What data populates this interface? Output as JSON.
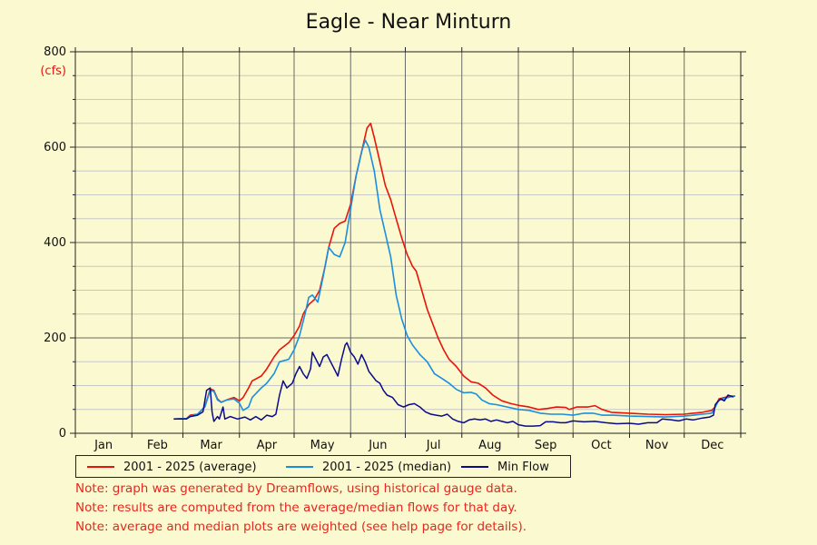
{
  "title": "Eagle - Near Minturn",
  "chart_data": {
    "type": "line",
    "title": "Eagle - Near Minturn",
    "ylabel": "(cfs)",
    "xlabel": "",
    "ylim": [
      0,
      800
    ],
    "yticks": [
      0,
      200,
      400,
      600,
      800
    ],
    "x_unit": "day_of_year",
    "xlim": [
      1,
      366
    ],
    "months": [
      {
        "label": "Jan",
        "start": 1
      },
      {
        "label": "Feb",
        "start": 32
      },
      {
        "label": "Mar",
        "start": 60
      },
      {
        "label": "Apr",
        "start": 91
      },
      {
        "label": "May",
        "start": 121
      },
      {
        "label": "Jun",
        "start": 152
      },
      {
        "label": "Jul",
        "start": 182
      },
      {
        "label": "Aug",
        "start": 213
      },
      {
        "label": "Sep",
        "start": 244
      },
      {
        "label": "Oct",
        "start": 274
      },
      {
        "label": "Nov",
        "start": 305
      },
      {
        "label": "Dec",
        "start": 335
      }
    ],
    "grid": true,
    "legend_position": "bottom",
    "series": [
      {
        "name": "2001 - 2025 (average)",
        "color": "#e8140c",
        "points": [
          [
            55,
            30
          ],
          [
            62,
            31
          ],
          [
            64,
            38
          ],
          [
            68,
            40
          ],
          [
            72,
            55
          ],
          [
            75,
            93
          ],
          [
            77,
            90
          ],
          [
            79,
            72
          ],
          [
            81,
            65
          ],
          [
            84,
            70
          ],
          [
            88,
            75
          ],
          [
            91,
            68
          ],
          [
            93,
            75
          ],
          [
            96,
            95
          ],
          [
            98,
            110
          ],
          [
            103,
            120
          ],
          [
            106,
            135
          ],
          [
            110,
            160
          ],
          [
            113,
            175
          ],
          [
            118,
            190
          ],
          [
            121,
            205
          ],
          [
            124,
            225
          ],
          [
            126,
            250
          ],
          [
            129,
            270
          ],
          [
            132,
            280
          ],
          [
            135,
            300
          ],
          [
            138,
            350
          ],
          [
            140,
            390
          ],
          [
            143,
            430
          ],
          [
            146,
            440
          ],
          [
            149,
            445
          ],
          [
            152,
            480
          ],
          [
            155,
            540
          ],
          [
            158,
            590
          ],
          [
            161,
            640
          ],
          [
            163,
            650
          ],
          [
            165,
            620
          ],
          [
            168,
            570
          ],
          [
            171,
            520
          ],
          [
            174,
            490
          ],
          [
            177,
            450
          ],
          [
            180,
            410
          ],
          [
            183,
            375
          ],
          [
            186,
            350
          ],
          [
            188,
            340
          ],
          [
            191,
            300
          ],
          [
            194,
            260
          ],
          [
            197,
            230
          ],
          [
            200,
            200
          ],
          [
            203,
            175
          ],
          [
            206,
            155
          ],
          [
            210,
            140
          ],
          [
            214,
            120
          ],
          [
            218,
            108
          ],
          [
            222,
            105
          ],
          [
            226,
            95
          ],
          [
            230,
            80
          ],
          [
            235,
            68
          ],
          [
            240,
            62
          ],
          [
            245,
            58
          ],
          [
            250,
            55
          ],
          [
            255,
            50
          ],
          [
            260,
            52
          ],
          [
            265,
            55
          ],
          [
            270,
            54
          ],
          [
            272,
            50
          ],
          [
            276,
            55
          ],
          [
            282,
            55
          ],
          [
            286,
            58
          ],
          [
            290,
            50
          ],
          [
            295,
            44
          ],
          [
            305,
            42
          ],
          [
            315,
            40
          ],
          [
            325,
            39
          ],
          [
            335,
            40
          ],
          [
            340,
            42
          ],
          [
            345,
            44
          ],
          [
            350,
            48
          ],
          [
            352,
            55
          ],
          [
            354,
            72
          ],
          [
            357,
            75
          ],
          [
            360,
            78
          ],
          [
            363,
            78
          ]
        ]
      },
      {
        "name": "2001 - 2025 (median)",
        "color": "#1a8fe0",
        "points": [
          [
            55,
            30
          ],
          [
            62,
            31
          ],
          [
            64,
            36
          ],
          [
            68,
            40
          ],
          [
            72,
            55
          ],
          [
            75,
            90
          ],
          [
            77,
            88
          ],
          [
            79,
            70
          ],
          [
            81,
            65
          ],
          [
            84,
            70
          ],
          [
            88,
            72
          ],
          [
            91,
            63
          ],
          [
            93,
            48
          ],
          [
            96,
            55
          ],
          [
            98,
            75
          ],
          [
            103,
            95
          ],
          [
            106,
            105
          ],
          [
            110,
            125
          ],
          [
            113,
            150
          ],
          [
            118,
            155
          ],
          [
            121,
            175
          ],
          [
            124,
            205
          ],
          [
            127,
            250
          ],
          [
            129,
            285
          ],
          [
            131,
            290
          ],
          [
            134,
            275
          ],
          [
            137,
            330
          ],
          [
            140,
            390
          ],
          [
            143,
            375
          ],
          [
            146,
            370
          ],
          [
            149,
            400
          ],
          [
            152,
            470
          ],
          [
            155,
            540
          ],
          [
            158,
            590
          ],
          [
            160,
            615
          ],
          [
            162,
            600
          ],
          [
            165,
            550
          ],
          [
            168,
            470
          ],
          [
            171,
            420
          ],
          [
            174,
            370
          ],
          [
            177,
            290
          ],
          [
            180,
            240
          ],
          [
            183,
            205
          ],
          [
            186,
            185
          ],
          [
            190,
            165
          ],
          [
            194,
            150
          ],
          [
            198,
            125
          ],
          [
            202,
            115
          ],
          [
            206,
            105
          ],
          [
            210,
            92
          ],
          [
            214,
            85
          ],
          [
            218,
            86
          ],
          [
            221,
            82
          ],
          [
            224,
            70
          ],
          [
            228,
            62
          ],
          [
            232,
            60
          ],
          [
            238,
            55
          ],
          [
            244,
            50
          ],
          [
            250,
            48
          ],
          [
            256,
            42
          ],
          [
            262,
            40
          ],
          [
            268,
            40
          ],
          [
            274,
            38
          ],
          [
            280,
            42
          ],
          [
            285,
            42
          ],
          [
            290,
            38
          ],
          [
            296,
            38
          ],
          [
            305,
            36
          ],
          [
            315,
            35
          ],
          [
            325,
            34
          ],
          [
            335,
            36
          ],
          [
            340,
            38
          ],
          [
            345,
            40
          ],
          [
            350,
            42
          ],
          [
            352,
            55
          ],
          [
            354,
            70
          ],
          [
            357,
            73
          ],
          [
            360,
            76
          ],
          [
            363,
            78
          ]
        ]
      },
      {
        "name": "Min Flow",
        "color": "#0a0a8c",
        "points": [
          [
            55,
            30
          ],
          [
            62,
            30
          ],
          [
            64,
            35
          ],
          [
            68,
            38
          ],
          [
            71,
            45
          ],
          [
            73,
            90
          ],
          [
            75,
            95
          ],
          [
            76,
            45
          ],
          [
            77,
            25
          ],
          [
            79,
            35
          ],
          [
            80,
            30
          ],
          [
            82,
            55
          ],
          [
            83,
            30
          ],
          [
            86,
            35
          ],
          [
            90,
            30
          ],
          [
            94,
            34
          ],
          [
            97,
            28
          ],
          [
            100,
            35
          ],
          [
            103,
            28
          ],
          [
            106,
            38
          ],
          [
            109,
            35
          ],
          [
            111,
            40
          ],
          [
            113,
            80
          ],
          [
            115,
            110
          ],
          [
            117,
            95
          ],
          [
            120,
            105
          ],
          [
            122,
            125
          ],
          [
            124,
            140
          ],
          [
            126,
            125
          ],
          [
            128,
            115
          ],
          [
            130,
            135
          ],
          [
            131,
            170
          ],
          [
            133,
            155
          ],
          [
            135,
            140
          ],
          [
            137,
            160
          ],
          [
            139,
            165
          ],
          [
            141,
            150
          ],
          [
            143,
            135
          ],
          [
            145,
            120
          ],
          [
            147,
            155
          ],
          [
            149,
            185
          ],
          [
            150,
            190
          ],
          [
            152,
            170
          ],
          [
            154,
            160
          ],
          [
            156,
            145
          ],
          [
            158,
            165
          ],
          [
            160,
            150
          ],
          [
            162,
            130
          ],
          [
            164,
            120
          ],
          [
            166,
            110
          ],
          [
            168,
            105
          ],
          [
            170,
            90
          ],
          [
            172,
            80
          ],
          [
            175,
            75
          ],
          [
            178,
            60
          ],
          [
            181,
            55
          ],
          [
            184,
            60
          ],
          [
            187,
            62
          ],
          [
            190,
            55
          ],
          [
            193,
            45
          ],
          [
            196,
            40
          ],
          [
            199,
            38
          ],
          [
            202,
            36
          ],
          [
            205,
            40
          ],
          [
            208,
            30
          ],
          [
            211,
            25
          ],
          [
            214,
            22
          ],
          [
            217,
            28
          ],
          [
            220,
            30
          ],
          [
            223,
            28
          ],
          [
            226,
            30
          ],
          [
            229,
            25
          ],
          [
            232,
            28
          ],
          [
            235,
            25
          ],
          [
            238,
            22
          ],
          [
            241,
            25
          ],
          [
            244,
            18
          ],
          [
            248,
            15
          ],
          [
            252,
            15
          ],
          [
            256,
            16
          ],
          [
            259,
            24
          ],
          [
            263,
            24
          ],
          [
            267,
            22
          ],
          [
            270,
            22
          ],
          [
            274,
            26
          ],
          [
            280,
            24
          ],
          [
            286,
            25
          ],
          [
            292,
            22
          ],
          [
            298,
            20
          ],
          [
            305,
            21
          ],
          [
            310,
            19
          ],
          [
            315,
            22
          ],
          [
            320,
            22
          ],
          [
            323,
            30
          ],
          [
            328,
            28
          ],
          [
            332,
            26
          ],
          [
            336,
            30
          ],
          [
            340,
            28
          ],
          [
            345,
            32
          ],
          [
            349,
            34
          ],
          [
            351,
            38
          ],
          [
            352,
            60
          ],
          [
            353,
            65
          ],
          [
            355,
            72
          ],
          [
            357,
            68
          ],
          [
            359,
            80
          ],
          [
            362,
            76
          ]
        ]
      }
    ]
  },
  "notes": [
    "Note: graph was generated by Dreamflows, using historical gauge data.",
    "Note: results are computed from the average/median flows for that day.",
    "Note: average and median plots are weighted (see help page for details)."
  ]
}
